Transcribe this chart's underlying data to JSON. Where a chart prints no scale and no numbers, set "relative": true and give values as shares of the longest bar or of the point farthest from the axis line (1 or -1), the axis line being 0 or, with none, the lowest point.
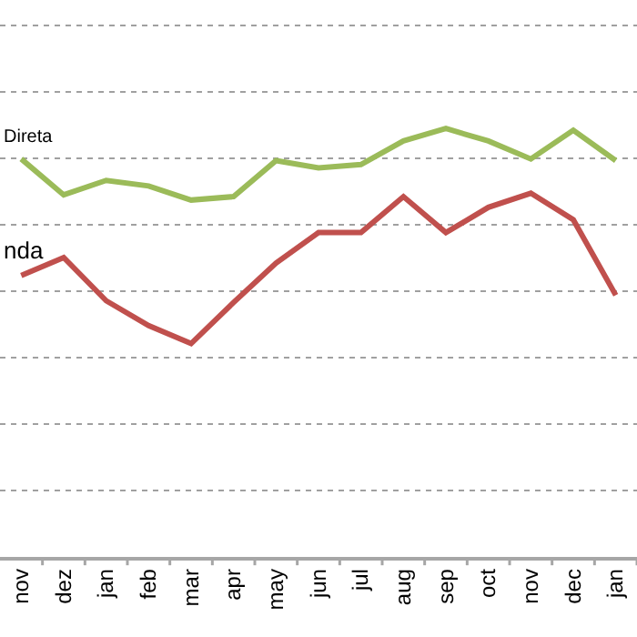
{
  "chart_data": {
    "type": "line",
    "relative": true,
    "grid": "y",
    "legend": false,
    "line_style": "solid",
    "marker": "none",
    "categories": [
      "nov",
      "dez",
      "jan",
      "feb",
      "mar",
      "apr",
      "may",
      "jun",
      "jul",
      "aug",
      "sep",
      "oct",
      "nov",
      "dec",
      "jan"
    ],
    "series": [
      {
        "name": "Direta",
        "color": "#9bbb59",
        "values": [
          0.929,
          0.845,
          0.879,
          0.866,
          0.833,
          0.841,
          0.925,
          0.908,
          0.916,
          0.971,
          1,
          0.971,
          0.929,
          0.996,
          0.925
        ]
      },
      {
        "name": "nda",
        "color": "#c0504d",
        "values": [
          0.657,
          0.699,
          0.598,
          0.54,
          0.498,
          0.594,
          0.686,
          0.757,
          0.757,
          0.841,
          0.757,
          0.816,
          0.849,
          0.787,
          0.611
        ]
      }
    ]
  }
}
